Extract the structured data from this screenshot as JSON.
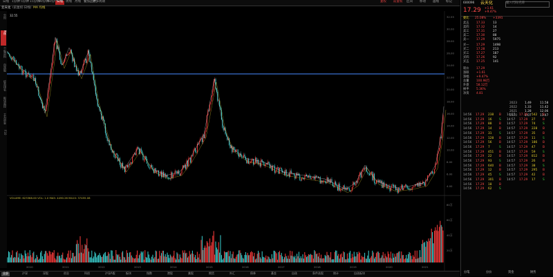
{
  "toolbar": {
    "items": [
      "日线",
      "1分钟",
      "5分钟",
      "15分钟",
      "30分钟",
      "60分钟",
      "日线",
      "周线",
      "月线",
      "叠加品种",
      "更多周期"
    ],
    "active_index": 6,
    "right_items": [
      "复权",
      "前复权",
      "区间",
      "移动",
      "画线",
      "标记"
    ]
  },
  "title_row": {
    "name": "云天化",
    "extra": "(前复权·日线)",
    "ma": "MA 均线"
  },
  "sidebar": {
    "items": [
      "分时",
      "K线",
      "个股资料",
      "自选股",
      "综合排名",
      "板块监控",
      "主力资金",
      "F10"
    ]
  },
  "chart": {
    "top_price_label": "32.55",
    "indicator_line": "VOLUME: 623368.00  VOL: 1.0  MA5: 4490.26  MA10: 37455.08",
    "hline_color": "#3a6fd0",
    "y_labels": [
      "32.55",
      "30.00",
      "28.00",
      "26.00",
      "24.00",
      "22.00",
      "20.00",
      "18.00",
      "16.00",
      "14.00",
      "12.00",
      "10.00",
      "8.00",
      "6.00",
      "4.00"
    ],
    "vol_labels": [
      "80万",
      "60万",
      "40万",
      "20万"
    ],
    "x_labels": [
      "2010",
      "2011",
      "2012",
      "2013",
      "2014",
      "2015",
      "2016",
      "2017",
      "2018",
      "2019",
      "2020",
      "2021"
    ]
  },
  "tabs": {
    "items": [
      "全部",
      "沪深",
      "深股",
      "创业",
      "科创",
      "沪深A股",
      "板块",
      "指数",
      "港股",
      "美股",
      "期货",
      "外汇",
      "债券",
      "基金",
      "自选",
      "条件选股",
      "统计",
      "自选板块"
    ],
    "active_index": 0
  },
  "right_panel": {
    "code": "600096",
    "name": "云天化",
    "price": "17.29",
    "change": "+1.61",
    "change_pct": "+9.47%",
    "search_placeholder": "输入代码/名称",
    "pct_label": "25.08%",
    "buy_sell": "+3391",
    "bid_header": "委比",
    "asks": [
      {
        "label": "卖五",
        "price": "17.33",
        "vol": "13"
      },
      {
        "label": "卖四",
        "price": "17.32",
        "vol": "14"
      },
      {
        "label": "卖三",
        "price": "17.31",
        "vol": "27"
      },
      {
        "label": "卖二",
        "price": "17.30",
        "vol": "88"
      },
      {
        "label": "卖一",
        "price": "17.29",
        "vol": "5975"
      }
    ],
    "bids": [
      {
        "label": "买一",
        "price": "17.29",
        "vol": "1498"
      },
      {
        "label": "买二",
        "price": "17.28",
        "vol": "213"
      },
      {
        "label": "买三",
        "price": "17.27",
        "vol": "187"
      },
      {
        "label": "买四",
        "price": "17.26",
        "vol": "92"
      },
      {
        "label": "买五",
        "price": "17.25",
        "vol": "141"
      }
    ],
    "stats": [
      {
        "k": "现价",
        "v": "17.29"
      },
      {
        "k": "涨跌",
        "v": "+1.61"
      },
      {
        "k": "涨幅",
        "v": "+9.47%"
      },
      {
        "k": "总量",
        "v": "100.98万"
      },
      {
        "k": "外盘",
        "v": "58.12万"
      },
      {
        "k": "换手",
        "v": "5.36%"
      },
      {
        "k": "净资",
        "v": "4.81"
      }
    ],
    "fin_rows": [
      {
        "y": "2023",
        "a": "1.49",
        "b": "11.58"
      },
      {
        "y": "2022",
        "a": "1.33",
        "b": "11.42"
      },
      {
        "y": "2021",
        "a": "1.28",
        "b": "12.06"
      },
      {
        "y": "2020",
        "a": "1.07",
        "b": "11.47"
      }
    ],
    "ticks": [
      {
        "t": "14:56",
        "p": "17.29",
        "v": "238",
        "s": "B"
      },
      {
        "t": "14:56",
        "p": "17.29",
        "v": "16",
        "s": "S"
      },
      {
        "t": "14:56",
        "p": "17.29",
        "v": "88",
        "s": "B"
      },
      {
        "t": "14:56",
        "p": "17.29",
        "v": "14",
        "s": "B"
      },
      {
        "t": "14:56",
        "p": "17.29",
        "v": "31",
        "s": "S"
      },
      {
        "t": "14:56",
        "p": "17.29",
        "v": "128",
        "s": "B"
      },
      {
        "t": "14:56",
        "p": "17.29",
        "v": "56",
        "s": "B"
      },
      {
        "t": "14:56",
        "p": "17.29",
        "v": "7",
        "s": "S"
      },
      {
        "t": "14:56",
        "p": "17.29",
        "v": "451",
        "s": "B"
      },
      {
        "t": "14:56",
        "p": "17.29",
        "v": "22",
        "s": "B"
      },
      {
        "t": "14:56",
        "p": "17.29",
        "v": "93",
        "s": "S"
      },
      {
        "t": "14:56",
        "p": "17.29",
        "v": "640",
        "s": "B"
      },
      {
        "t": "14:56",
        "p": "17.29",
        "v": "12",
        "s": "B"
      },
      {
        "t": "14:56",
        "p": "17.29",
        "v": "45",
        "s": "S"
      },
      {
        "t": "14:56",
        "p": "17.29",
        "v": "301",
        "s": "B"
      },
      {
        "t": "14:56",
        "p": "17.29",
        "v": "18",
        "s": "B"
      },
      {
        "t": "14:56",
        "p": "17.29",
        "v": "62",
        "s": "S"
      },
      {
        "t": "14:57",
        "p": "17.29",
        "v": "542",
        "s": "B"
      },
      {
        "t": "14:57",
        "p": "17.29",
        "v": "27",
        "s": "B"
      },
      {
        "t": "14:57",
        "p": "17.29",
        "v": "74",
        "s": "S"
      },
      {
        "t": "14:57",
        "p": "17.29",
        "v": "228",
        "s": "B"
      },
      {
        "t": "14:57",
        "p": "17.29",
        "v": "35",
        "s": "B"
      },
      {
        "t": "14:57",
        "p": "17.29",
        "v": "11",
        "s": "S"
      },
      {
        "t": "14:57",
        "p": "17.29",
        "v": "186",
        "s": "B"
      },
      {
        "t": "14:57",
        "p": "17.29",
        "v": "47",
        "s": "B"
      },
      {
        "t": "14:57",
        "p": "17.29",
        "v": "59",
        "s": "S"
      },
      {
        "t": "14:57",
        "p": "17.29",
        "v": "812",
        "s": "B"
      },
      {
        "t": "14:57",
        "p": "17.29",
        "v": "26",
        "s": "B"
      },
      {
        "t": "14:57",
        "p": "17.29",
        "v": "38",
        "s": "S"
      },
      {
        "t": "14:57",
        "p": "17.29",
        "v": "295",
        "s": "B"
      },
      {
        "t": "14:57",
        "p": "17.29",
        "v": "42",
        "s": "B"
      },
      {
        "t": "14:57",
        "p": "17.29",
        "v": "17",
        "s": "S"
      }
    ],
    "bottom_tabs": [
      "分笔",
      "分价",
      "资金",
      "财务"
    ]
  }
}
